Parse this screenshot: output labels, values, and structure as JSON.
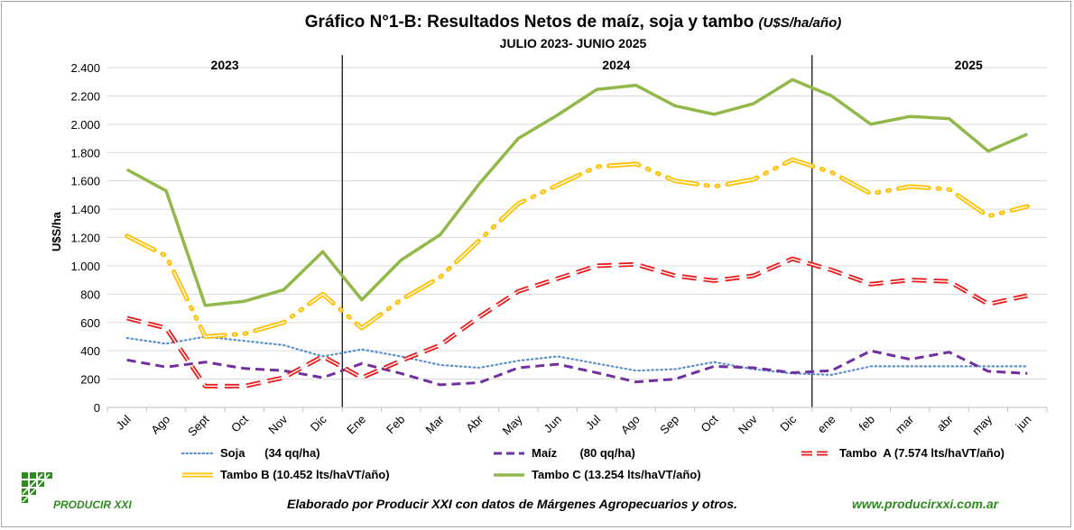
{
  "header": {
    "title": "Gráfico N°1-B: Resultados Netos de maíz, soja y tambo",
    "title_units": "(U$S/ha/año)",
    "subtitle": "JULIO 2023- JUNIO 2025"
  },
  "chart_data": {
    "type": "line",
    "ylabel": "U$S/ha",
    "ylim": [
      0,
      2400
    ],
    "yticks": [
      0,
      200,
      400,
      600,
      800,
      1000,
      1200,
      1400,
      1600,
      1800,
      2000,
      2200,
      2400
    ],
    "ytick_labels": [
      "0",
      "200",
      "400",
      "600",
      "800",
      "1.000",
      "1.200",
      "1.400",
      "1.600",
      "1.800",
      "2.000",
      "2.200",
      "2.400"
    ],
    "grid": true,
    "categories": [
      "Jul",
      "Ago",
      "Sept",
      "Oct",
      "Nov",
      "Dic",
      "Ene",
      "Feb",
      "Mar",
      "Abr",
      "May",
      "Jun",
      "Jul",
      "Ago",
      "Sep",
      "Oct",
      "Nov",
      "Dic",
      "ene",
      "feb",
      "mar",
      "abr",
      "may",
      "jun"
    ],
    "year_labels": [
      {
        "label": "2023",
        "category_index": 2.5
      },
      {
        "label": "2024",
        "category_index": 12.5
      },
      {
        "label": "2025",
        "category_index": 21.5
      }
    ],
    "year_dividers_before": [
      6,
      18
    ],
    "series": [
      {
        "name": "Soja      (34 qq/ha)",
        "style": "dotted",
        "color": "#5b8fc9",
        "values": [
          490,
          450,
          500,
          470,
          440,
          360,
          410,
          360,
          300,
          280,
          330,
          360,
          310,
          260,
          270,
          320,
          270,
          240,
          230,
          290,
          290,
          290,
          290,
          290
        ]
      },
      {
        "name": "Maíz       (80 qq/ha)",
        "style": "dashed",
        "color": "#7030a0",
        "values": [
          335,
          285,
          320,
          275,
          260,
          210,
          310,
          240,
          160,
          175,
          280,
          305,
          245,
          180,
          200,
          290,
          280,
          245,
          260,
          400,
          340,
          390,
          255,
          240
        ]
      },
      {
        "name": "Tambo  A (7.574 lts/haVT/año)",
        "style": "double-dash",
        "color": "#e81c1c",
        "values": [
          630,
          560,
          150,
          150,
          210,
          360,
          210,
          330,
          440,
          640,
          820,
          910,
          1000,
          1010,
          930,
          895,
          930,
          1050,
          970,
          870,
          900,
          890,
          730,
          790
        ]
      },
      {
        "name": "Tambo B (10.452 lts/haVT/año)",
        "style": "double-dashdot",
        "color": "#ffc000",
        "values": [
          1210,
          1070,
          500,
          520,
          600,
          800,
          560,
          760,
          920,
          1180,
          1440,
          1570,
          1700,
          1720,
          1600,
          1560,
          1610,
          1750,
          1660,
          1510,
          1560,
          1540,
          1350,
          1420
        ]
      },
      {
        "name": "Tambo C (13.254 lts/haVT/año)",
        "style": "solid",
        "color": "#92b84a",
        "values": [
          1680,
          1530,
          720,
          750,
          830,
          1100,
          760,
          1040,
          1220,
          1580,
          1900,
          2065,
          2245,
          2275,
          2130,
          2070,
          2145,
          2315,
          2200,
          2000,
          2055,
          2040,
          1810,
          1930
        ]
      }
    ]
  },
  "footer": {
    "credit": "Elaborado por Producir XXI con datos de Márgenes Agropecuarios y otros.",
    "url": "www.producirxxi.com.ar",
    "logo_text": "PRODUCIR XXI"
  },
  "colors": {
    "logo_green": "#2e8b1f",
    "grid": "#d9d9d9"
  }
}
